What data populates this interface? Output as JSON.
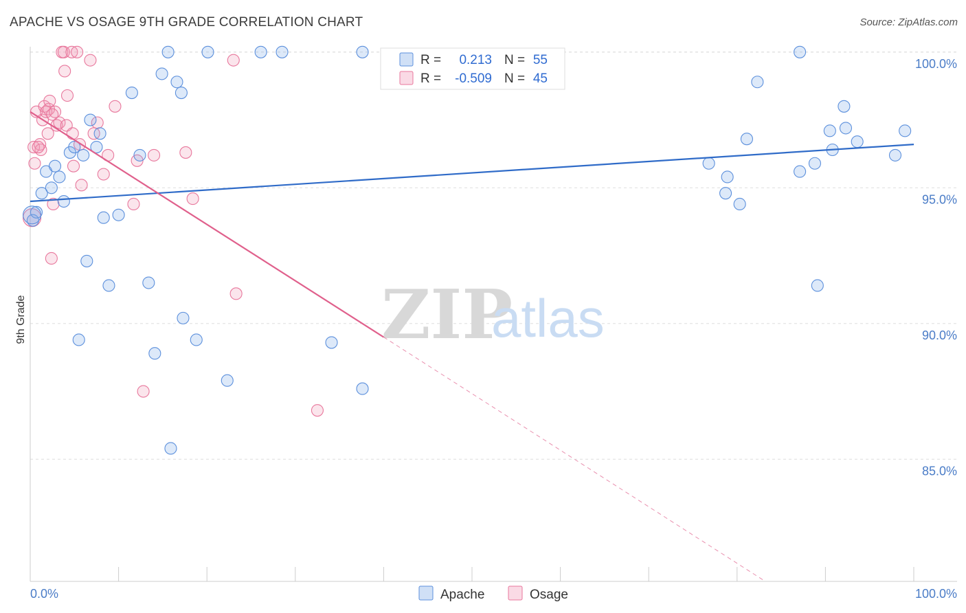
{
  "title": "APACHE VS OSAGE 9TH GRADE CORRELATION CHART",
  "source": "Source: ZipAtlas.com",
  "watermark": {
    "zip": "ZIP",
    "atlas": "atlas"
  },
  "colors": {
    "apache": "#5b8fdc",
    "apache_fill": "rgba(120,166,230,0.25)",
    "apache_line": "#2f6bc8",
    "osage": "#e8779c",
    "osage_fill": "rgba(240,150,180,0.25)",
    "osage_line": "#e0608c",
    "grid": "#dedede",
    "tick_label": "#4a7cc7"
  },
  "legend": {
    "r_label": "R =",
    "n_label": "N =",
    "apache": {
      "r": "0.213",
      "n": "55"
    },
    "osage": {
      "r": "-0.509",
      "n": "45"
    }
  },
  "chart_data": {
    "type": "scatter",
    "title": "APACHE VS OSAGE 9TH GRADE CORRELATION CHART",
    "xlabel": "",
    "ylabel": "9th Grade",
    "xlim": [
      0,
      100
    ],
    "ylim": [
      80.5,
      100.4
    ],
    "x_tick_labels": [
      "0.0%",
      "100.0%"
    ],
    "y_ticks": [
      85,
      90,
      95,
      100
    ],
    "y_tick_labels": [
      "85.0%",
      "90.0%",
      "95.0%",
      "100.0%"
    ],
    "grid": true,
    "legend_position": "top-center",
    "series": [
      {
        "name": "Apache",
        "trend": {
          "x0": 0,
          "y0": 94.5,
          "x1": 100,
          "y1": 96.6
        },
        "points": [
          [
            0.3,
            93.8
          ],
          [
            0.7,
            94.1
          ],
          [
            1.3,
            94.8
          ],
          [
            1.8,
            95.6
          ],
          [
            2.4,
            95.0
          ],
          [
            2.8,
            95.8
          ],
          [
            3.3,
            95.4
          ],
          [
            3.8,
            94.5
          ],
          [
            4.5,
            96.3
          ],
          [
            5.0,
            96.5
          ],
          [
            5.5,
            89.4
          ],
          [
            6.0,
            96.2
          ],
          [
            6.4,
            92.3
          ],
          [
            6.8,
            97.5
          ],
          [
            7.5,
            96.5
          ],
          [
            7.9,
            97.0
          ],
          [
            8.3,
            93.9
          ],
          [
            8.9,
            91.4
          ],
          [
            10.0,
            94.0
          ],
          [
            11.5,
            98.5
          ],
          [
            12.4,
            96.2
          ],
          [
            13.4,
            91.5
          ],
          [
            14.1,
            88.9
          ],
          [
            14.9,
            99.2
          ],
          [
            15.6,
            100.0
          ],
          [
            15.9,
            85.4
          ],
          [
            16.6,
            98.9
          ],
          [
            17.1,
            98.5
          ],
          [
            17.3,
            90.2
          ],
          [
            18.8,
            89.4
          ],
          [
            20.1,
            100.0
          ],
          [
            22.3,
            87.9
          ],
          [
            26.1,
            100.0
          ],
          [
            28.5,
            100.0
          ],
          [
            34.1,
            89.3
          ],
          [
            37.6,
            87.6
          ],
          [
            37.6,
            100.0
          ],
          [
            76.8,
            95.9
          ],
          [
            78.7,
            94.8
          ],
          [
            78.9,
            95.4
          ],
          [
            80.3,
            94.4
          ],
          [
            81.1,
            96.8
          ],
          [
            82.3,
            98.9
          ],
          [
            87.1,
            95.6
          ],
          [
            87.1,
            100.0
          ],
          [
            88.8,
            95.9
          ],
          [
            89.1,
            91.4
          ],
          [
            90.5,
            97.1
          ],
          [
            90.8,
            96.4
          ],
          [
            92.1,
            98.0
          ],
          [
            92.3,
            97.2
          ],
          [
            93.6,
            96.7
          ],
          [
            97.9,
            96.2
          ],
          [
            99.0,
            97.1
          ],
          [
            0.2,
            94.0
          ]
        ]
      },
      {
        "name": "Osage",
        "trend": {
          "x0": 0,
          "y0": 97.8,
          "x1": 40,
          "y1": 89.5
        },
        "trend_dashed": {
          "x0": 40,
          "y0": 89.5,
          "x1": 100,
          "y1": 77.0
        },
        "points": [
          [
            0.2,
            93.9
          ],
          [
            0.4,
            96.5
          ],
          [
            0.5,
            95.9
          ],
          [
            0.7,
            97.8
          ],
          [
            1.1,
            96.6
          ],
          [
            1.2,
            96.4
          ],
          [
            1.4,
            97.5
          ],
          [
            1.6,
            98.0
          ],
          [
            1.8,
            97.8
          ],
          [
            2.0,
            97.0
          ],
          [
            2.1,
            97.9
          ],
          [
            2.2,
            98.2
          ],
          [
            2.4,
            92.4
          ],
          [
            2.6,
            94.4
          ],
          [
            2.8,
            97.8
          ],
          [
            3.0,
            97.3
          ],
          [
            3.3,
            97.4
          ],
          [
            3.6,
            100.0
          ],
          [
            3.8,
            100.0
          ],
          [
            3.9,
            99.3
          ],
          [
            4.1,
            97.3
          ],
          [
            4.2,
            98.4
          ],
          [
            4.7,
            100.0
          ],
          [
            4.8,
            97.0
          ],
          [
            4.9,
            95.8
          ],
          [
            5.3,
            100.0
          ],
          [
            5.6,
            96.6
          ],
          [
            5.8,
            95.1
          ],
          [
            6.8,
            99.7
          ],
          [
            7.2,
            97.0
          ],
          [
            7.6,
            97.4
          ],
          [
            8.3,
            95.5
          ],
          [
            8.8,
            96.2
          ],
          [
            9.6,
            98.0
          ],
          [
            11.7,
            94.4
          ],
          [
            12.1,
            96.0
          ],
          [
            12.8,
            87.5
          ],
          [
            14.0,
            96.2
          ],
          [
            17.6,
            96.3
          ],
          [
            18.4,
            94.6
          ],
          [
            23.0,
            99.7
          ],
          [
            23.3,
            91.1
          ],
          [
            32.5,
            86.8
          ],
          [
            0.9,
            96.5
          ],
          [
            2.5,
            97.7
          ]
        ]
      }
    ]
  },
  "bottom_legend": [
    {
      "label": "Apache"
    },
    {
      "label": "Osage"
    }
  ]
}
